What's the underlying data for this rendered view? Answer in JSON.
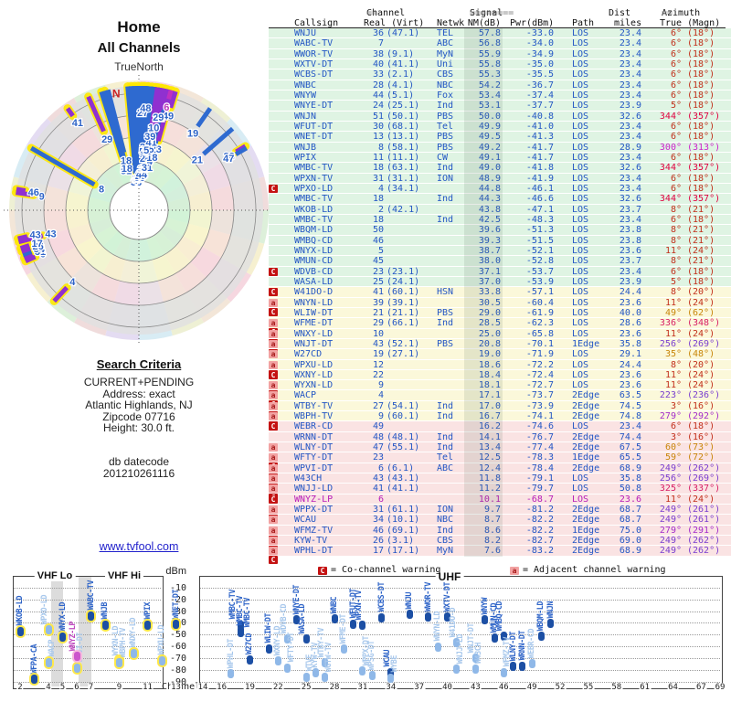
{
  "radar": {
    "title": "Home",
    "subtitle": "All Channels",
    "north_label": "TrueNorth",
    "north_marker": "N"
  },
  "search_criteria": {
    "heading": "Search Criteria",
    "lines": [
      "CURRENT+PENDING",
      "Address: exact",
      "Atlantic Highlands, NJ",
      "Zipcode 07716",
      "Height: 30.0 ft."
    ],
    "db_lines": [
      "db datecode",
      "201210261116"
    ]
  },
  "footer_link": "www.tvfool.com",
  "table": {
    "group_headers": {
      "channel": {
        "pre": "==",
        "label": "Channel",
        "post": "=="
      },
      "signal": {
        "pre": "========",
        "label": "Signal",
        "post": "========"
      },
      "dist": "Dist",
      "azimuth": {
        "pre": "==",
        "label": "Azimuth",
        "post": "=="
      }
    },
    "col_headers": {
      "callsign": "Callsign",
      "real_virt": "Real (Virt)",
      "netwk": "Netwk",
      "nm": "NM(dB)",
      "pwr": "Pwr(dBm)",
      "path": "Path",
      "miles": "miles",
      "true_magn": "True (Magn)"
    }
  },
  "colors": {
    "text_blue": "#2356c5",
    "row_green": "#dff4e3",
    "row_yellow": "#fbf8da",
    "row_pink": "#fae3e3",
    "co_badge": "#c41212",
    "adj_badge": "#f2a2a2",
    "analog_magenta": "#b81cb8",
    "az_red": "#c2301c",
    "az_crimson": "#e00040",
    "az_magenta": "#cc22cc",
    "az_pink": "#d81e64",
    "az_orange": "#c8860a",
    "az_purple": "#7a3fd0",
    "az_violet": "#a32ccc"
  },
  "stations": [
    {
      "callsign": "WNJU",
      "real": 36,
      "virt": "(47.1)",
      "netwk": "TEL",
      "nm": "57.8",
      "pwr": "-33.0",
      "path": "LOS",
      "miles": "23.4",
      "true": "6°",
      "magn": "(18°)",
      "az": 6,
      "flags": "",
      "tier": "g",
      "ac": "#c2301c"
    },
    {
      "callsign": "WABC-TV",
      "real": 7,
      "virt": "",
      "netwk": "ABC",
      "nm": "56.8",
      "pwr": "-34.0",
      "path": "LOS",
      "miles": "23.4",
      "true": "6°",
      "magn": "(18°)",
      "az": 6,
      "flags": "",
      "tier": "g",
      "ac": "#c2301c"
    },
    {
      "callsign": "WWOR-TV",
      "real": 38,
      "virt": "(9.1)",
      "netwk": "MyN",
      "nm": "55.9",
      "pwr": "-34.9",
      "path": "LOS",
      "miles": "23.4",
      "true": "6°",
      "magn": "(18°)",
      "az": 6,
      "flags": "",
      "tier": "g",
      "ac": "#c2301c"
    },
    {
      "callsign": "WXTV-DT",
      "real": 40,
      "virt": "(41.1)",
      "netwk": "Uni",
      "nm": "55.8",
      "pwr": "-35.0",
      "path": "LOS",
      "miles": "23.4",
      "true": "6°",
      "magn": "(18°)",
      "az": 6,
      "flags": "",
      "tier": "g",
      "ac": "#c2301c"
    },
    {
      "callsign": "WCBS-DT",
      "real": 33,
      "virt": "(2.1)",
      "netwk": "CBS",
      "nm": "55.3",
      "pwr": "-35.5",
      "path": "LOS",
      "miles": "23.4",
      "true": "6°",
      "magn": "(18°)",
      "az": 6,
      "flags": "",
      "tier": "g",
      "ac": "#c2301c"
    },
    {
      "callsign": "WNBC",
      "real": 28,
      "virt": "(4.1)",
      "netwk": "NBC",
      "nm": "54.2",
      "pwr": "-36.7",
      "path": "LOS",
      "miles": "23.4",
      "true": "6°",
      "magn": "(18°)",
      "az": 6,
      "flags": "",
      "tier": "g",
      "ac": "#c2301c"
    },
    {
      "callsign": "WNYW",
      "real": 44,
      "virt": "(5.1)",
      "netwk": "Fox",
      "nm": "53.4",
      "pwr": "-37.4",
      "path": "LOS",
      "miles": "23.4",
      "true": "6°",
      "magn": "(18°)",
      "az": 6,
      "flags": "",
      "tier": "g",
      "ac": "#c2301c"
    },
    {
      "callsign": "WNYE-DT",
      "real": 24,
      "virt": "(25.1)",
      "netwk": "Ind",
      "nm": "53.1",
      "pwr": "-37.7",
      "path": "LOS",
      "miles": "23.9",
      "true": "5°",
      "magn": "(18°)",
      "az": 5,
      "flags": "",
      "tier": "g",
      "ac": "#c2301c"
    },
    {
      "callsign": "WNJN",
      "real": 51,
      "virt": "(50.1)",
      "netwk": "PBS",
      "nm": "50.0",
      "pwr": "-40.8",
      "path": "LOS",
      "miles": "32.6",
      "true": "344°",
      "magn": "(357°)",
      "az": 344,
      "flags": "",
      "tier": "g",
      "ac": "#e00040"
    },
    {
      "callsign": "WFUT-DT",
      "real": 30,
      "virt": "(68.1)",
      "netwk": "Tel",
      "nm": "49.9",
      "pwr": "-41.0",
      "path": "LOS",
      "miles": "23.4",
      "true": "6°",
      "magn": "(18°)",
      "az": 6,
      "flags": "",
      "tier": "g",
      "ac": "#c2301c"
    },
    {
      "callsign": "WNET-DT",
      "real": 13,
      "virt": "(13.1)",
      "netwk": "PBS",
      "nm": "49.5",
      "pwr": "-41.3",
      "path": "LOS",
      "miles": "23.4",
      "true": "6°",
      "magn": "(18°)",
      "az": 6,
      "flags": "",
      "tier": "g",
      "ac": "#c2301c"
    },
    {
      "callsign": "WNJB",
      "real": 8,
      "virt": "(58.1)",
      "netwk": "PBS",
      "nm": "49.2",
      "pwr": "-41.7",
      "path": "LOS",
      "miles": "28.9",
      "true": "300°",
      "magn": "(313°)",
      "az": 300,
      "flags": "",
      "tier": "g",
      "ac": "#cc22cc"
    },
    {
      "callsign": "WPIX",
      "real": 11,
      "virt": "(11.1)",
      "netwk": "CW",
      "nm": "49.1",
      "pwr": "-41.7",
      "path": "LOS",
      "miles": "23.4",
      "true": "6°",
      "magn": "(18°)",
      "az": 6,
      "flags": "",
      "tier": "g",
      "ac": "#c2301c"
    },
    {
      "callsign": "WMBC-TV",
      "real": 18,
      "virt": "(63.1)",
      "netwk": "Ind",
      "nm": "49.0",
      "pwr": "-41.8",
      "path": "LOS",
      "miles": "32.6",
      "true": "344°",
      "magn": "(357°)",
      "az": 344,
      "flags": "",
      "tier": "g",
      "ac": "#e00040"
    },
    {
      "callsign": "WPXN-TV",
      "real": 31,
      "virt": "(31.1)",
      "netwk": "ION",
      "nm": "48.9",
      "pwr": "-41.9",
      "path": "LOS",
      "miles": "23.4",
      "true": "6°",
      "magn": "(18°)",
      "az": 6,
      "flags": "",
      "tier": "g",
      "ac": "#c2301c"
    },
    {
      "callsign": "WPXO-LD",
      "real": 4,
      "virt": "(34.1)",
      "netwk": "",
      "nm": "44.8",
      "pwr": "-46.1",
      "path": "LOS",
      "miles": "23.4",
      "true": "6°",
      "magn": "(18°)",
      "az": 6,
      "flags": "C",
      "tier": "g",
      "ac": "#c2301c"
    },
    {
      "callsign": "WMBC-TV",
      "real": 18,
      "virt": "",
      "netwk": "Ind",
      "nm": "44.3",
      "pwr": "-46.6",
      "path": "LOS",
      "miles": "32.6",
      "true": "344°",
      "magn": "(357°)",
      "az": 344,
      "flags": "",
      "tier": "g",
      "ac": "#e00040"
    },
    {
      "callsign": "WKOB-LD",
      "real": 2,
      "virt": "(42.1)",
      "netwk": "",
      "nm": "43.8",
      "pwr": "-47.1",
      "path": "LOS",
      "miles": "23.7",
      "true": "8°",
      "magn": "(21°)",
      "az": 8,
      "flags": "",
      "tier": "g",
      "ac": "#c2301c"
    },
    {
      "callsign": "WMBC-TV",
      "real": 18,
      "virt": "",
      "netwk": "Ind",
      "nm": "42.5",
      "pwr": "-48.3",
      "path": "LOS",
      "miles": "23.4",
      "true": "6°",
      "magn": "(18°)",
      "az": 6,
      "flags": "",
      "tier": "g",
      "ac": "#c2301c"
    },
    {
      "callsign": "WBQM-LD",
      "real": 50,
      "virt": "",
      "netwk": "",
      "nm": "39.6",
      "pwr": "-51.3",
      "path": "LOS",
      "miles": "23.8",
      "true": "8°",
      "magn": "(21°)",
      "az": 8,
      "flags": "",
      "tier": "g",
      "ac": "#c2301c"
    },
    {
      "callsign": "WMBQ-CD",
      "real": 46,
      "virt": "",
      "netwk": "",
      "nm": "39.3",
      "pwr": "-51.5",
      "path": "LOS",
      "miles": "23.8",
      "true": "8°",
      "magn": "(21°)",
      "az": 8,
      "flags": "",
      "tier": "g",
      "ac": "#c2301c"
    },
    {
      "callsign": "WNYX-LD",
      "real": 5,
      "virt": "",
      "netwk": "",
      "nm": "38.7",
      "pwr": "-52.1",
      "path": "LOS",
      "miles": "23.6",
      "true": "11°",
      "magn": "(24°)",
      "az": 11,
      "flags": "",
      "tier": "g",
      "ac": "#c2301c"
    },
    {
      "callsign": "WMUN-CD",
      "real": 45,
      "virt": "",
      "netwk": "",
      "nm": "38.0",
      "pwr": "-52.8",
      "path": "LOS",
      "miles": "23.7",
      "true": "8°",
      "magn": "(21°)",
      "az": 8,
      "flags": "",
      "tier": "g",
      "ac": "#c2301c"
    },
    {
      "callsign": "WDVB-CD",
      "real": 23,
      "virt": "(23.1)",
      "netwk": "",
      "nm": "37.1",
      "pwr": "-53.7",
      "path": "LOS",
      "miles": "23.4",
      "true": "6°",
      "magn": "(18°)",
      "az": 6,
      "flags": "C",
      "tier": "g",
      "ac": "#c2301c"
    },
    {
      "callsign": "WASA-LD",
      "real": 25,
      "virt": "(24.1)",
      "netwk": "",
      "nm": "37.0",
      "pwr": "-53.9",
      "path": "LOS",
      "miles": "23.9",
      "true": "5°",
      "magn": "(18°)",
      "az": 5,
      "flags": "",
      "tier": "g",
      "ac": "#c2301c"
    },
    {
      "callsign": "W41DO-D",
      "real": 41,
      "virt": "(60.1)",
      "netwk": "HSN",
      "nm": "33.8",
      "pwr": "-57.1",
      "path": "LOS",
      "miles": "24.4",
      "true": "8°",
      "magn": "(20°)",
      "az": 8,
      "flags": "C",
      "tier": "y",
      "ac": "#c2301c"
    },
    {
      "callsign": "WNYN-LD",
      "real": 39,
      "virt": "(39.1)",
      "netwk": "",
      "nm": "30.5",
      "pwr": "-60.4",
      "path": "LOS",
      "miles": "23.6",
      "true": "11°",
      "magn": "(24°)",
      "az": 11,
      "flags": "aC",
      "tier": "y",
      "ac": "#c2301c"
    },
    {
      "callsign": "WLIW-DT",
      "real": 21,
      "virt": "(21.1)",
      "netwk": "PBS",
      "nm": "29.0",
      "pwr": "-61.9",
      "path": "LOS",
      "miles": "40.0",
      "true": "49°",
      "magn": "(62°)",
      "az": 49,
      "flags": "",
      "tier": "y",
      "ac": "#c8860a"
    },
    {
      "callsign": "WFME-DT",
      "real": 29,
      "virt": "(66.1)",
      "netwk": "Ind",
      "nm": "28.5",
      "pwr": "-62.3",
      "path": "LOS",
      "miles": "28.6",
      "true": "336°",
      "magn": "(348°)",
      "az": 336,
      "flags": "aC",
      "tier": "y",
      "ac": "#d81e64"
    },
    {
      "callsign": "WNXY-LD",
      "real": 10,
      "virt": "",
      "netwk": "",
      "nm": "25.0",
      "pwr": "-65.8",
      "path": "LOS",
      "miles": "23.6",
      "true": "11°",
      "magn": "(24°)",
      "az": 11,
      "flags": "aC",
      "tier": "y",
      "ac": "#c2301c"
    },
    {
      "callsign": "WNJT-DT",
      "real": 43,
      "virt": "(52.1)",
      "netwk": "PBS",
      "nm": "20.8",
      "pwr": "-70.1",
      "path": "1Edge",
      "miles": "35.8",
      "true": "256°",
      "magn": "(269°)",
      "az": 256,
      "flags": "aC",
      "tier": "y",
      "ac": "#7a3fd0"
    },
    {
      "callsign": "W27CD",
      "real": 19,
      "virt": "(27.1)",
      "netwk": "",
      "nm": "19.0",
      "pwr": "-71.9",
      "path": "LOS",
      "miles": "29.1",
      "true": "35°",
      "magn": "(48°)",
      "az": 35,
      "flags": "a",
      "tier": "y",
      "ac": "#c8860a"
    },
    {
      "callsign": "WPXU-LD",
      "real": 12,
      "virt": "",
      "netwk": "",
      "nm": "18.6",
      "pwr": "-72.2",
      "path": "LOS",
      "miles": "24.4",
      "true": "8°",
      "magn": "(20°)",
      "az": 8,
      "flags": "aC",
      "tier": "y",
      "ac": "#c2301c"
    },
    {
      "callsign": "WXNY-LD",
      "real": 22,
      "virt": "",
      "netwk": "",
      "nm": "18.4",
      "pwr": "-72.4",
      "path": "LOS",
      "miles": "23.6",
      "true": "11°",
      "magn": "(24°)",
      "az": 11,
      "flags": "C",
      "tier": "y",
      "ac": "#c2301c"
    },
    {
      "callsign": "WYXN-LD",
      "real": 9,
      "virt": "",
      "netwk": "",
      "nm": "18.1",
      "pwr": "-72.7",
      "path": "LOS",
      "miles": "23.6",
      "true": "11°",
      "magn": "(24°)",
      "az": 11,
      "flags": "aC",
      "tier": "y",
      "ac": "#c2301c"
    },
    {
      "callsign": "WACP",
      "real": 4,
      "virt": "",
      "netwk": "",
      "nm": "17.1",
      "pwr": "-73.7",
      "path": "2Edge",
      "miles": "63.5",
      "true": "223°",
      "magn": "(236°)",
      "az": 223,
      "flags": "aC",
      "tier": "y",
      "ac": "#7a3fd0"
    },
    {
      "callsign": "WTBY-TV",
      "real": 27,
      "virt": "(54.1)",
      "netwk": "Ind",
      "nm": "17.0",
      "pwr": "-73.9",
      "path": "2Edge",
      "miles": "74.5",
      "true": "3°",
      "magn": "(16°)",
      "az": 3,
      "flags": "aC",
      "tier": "y",
      "ac": "#c2301c"
    },
    {
      "callsign": "WBPH-TV",
      "real": 9,
      "virt": "(60.1)",
      "netwk": "Ind",
      "nm": "16.7",
      "pwr": "-74.1",
      "path": "2Edge",
      "miles": "74.8",
      "true": "279°",
      "magn": "(292°)",
      "az": 279,
      "flags": "aC",
      "tier": "y",
      "ac": "#a32ccc"
    },
    {
      "callsign": "WEBR-CD",
      "real": 49,
      "virt": "",
      "netwk": "",
      "nm": "16.2",
      "pwr": "-74.6",
      "path": "LOS",
      "miles": "23.4",
      "true": "6°",
      "magn": "(18°)",
      "az": 6,
      "flags": "C",
      "tier": "p",
      "ac": "#c2301c"
    },
    {
      "callsign": "WRNN-DT",
      "real": 48,
      "virt": "(48.1)",
      "netwk": "Ind",
      "nm": "14.1",
      "pwr": "-76.7",
      "path": "2Edge",
      "miles": "74.4",
      "true": "3°",
      "magn": "(16°)",
      "az": 3,
      "flags": "",
      "tier": "p",
      "ac": "#c2301c"
    },
    {
      "callsign": "WLNY-DT",
      "real": 47,
      "virt": "(55.1)",
      "netwk": "Ind",
      "nm": "13.4",
      "pwr": "-77.4",
      "path": "2Edge",
      "miles": "67.5",
      "true": "60°",
      "magn": "(73°)",
      "az": 60,
      "flags": "a",
      "tier": "p",
      "ac": "#c8860a"
    },
    {
      "callsign": "WFTY-DT",
      "real": 23,
      "virt": "",
      "netwk": "Tel",
      "nm": "12.5",
      "pwr": "-78.3",
      "path": "1Edge",
      "miles": "65.5",
      "true": "59°",
      "magn": "(72°)",
      "az": 59,
      "flags": "aC",
      "tier": "p",
      "ac": "#c8860a"
    },
    {
      "callsign": "WPVI-DT",
      "real": 6,
      "virt": "(6.1)",
      "netwk": "ABC",
      "nm": "12.4",
      "pwr": "-78.4",
      "path": "2Edge",
      "miles": "68.9",
      "true": "249°",
      "magn": "(262°)",
      "az": 249,
      "flags": "aC",
      "tier": "p",
      "ac": "#7a3fd0"
    },
    {
      "callsign": "W43CH",
      "real": 43,
      "virt": "(43.1)",
      "netwk": "",
      "nm": "11.8",
      "pwr": "-79.1",
      "path": "LOS",
      "miles": "35.8",
      "true": "256°",
      "magn": "(269°)",
      "az": 256,
      "flags": "aC",
      "tier": "p",
      "ac": "#7a3fd0"
    },
    {
      "callsign": "WNJJ-LD",
      "real": 41,
      "virt": "(41.1)",
      "netwk": "",
      "nm": "11.2",
      "pwr": "-79.7",
      "path": "LOS",
      "miles": "50.8",
      "true": "325°",
      "magn": "(337°)",
      "az": 325,
      "flags": "aC",
      "tier": "p",
      "ac": "#d81e64"
    },
    {
      "callsign": "WNYZ-LP",
      "real": 6,
      "virt": "",
      "netwk": "",
      "nm": "10.1",
      "pwr": "-68.7",
      "path": "LOS",
      "miles": "23.6",
      "true": "11°",
      "magn": "(24°)",
      "az": 11,
      "flags": "C",
      "tier": "p",
      "ac": "#c2301c",
      "row_color": "#b81cb8"
    },
    {
      "callsign": "WPPX-DT",
      "real": 31,
      "virt": "(61.1)",
      "netwk": "ION",
      "nm": "9.7",
      "pwr": "-81.2",
      "path": "2Edge",
      "miles": "68.7",
      "true": "249°",
      "magn": "(261°)",
      "az": 249,
      "flags": "aC",
      "tier": "p",
      "ac": "#7a3fd0"
    },
    {
      "callsign": "WCAU",
      "real": 34,
      "virt": "(10.1)",
      "netwk": "NBC",
      "nm": "8.7",
      "pwr": "-82.2",
      "path": "2Edge",
      "miles": "68.7",
      "true": "249°",
      "magn": "(261°)",
      "az": 249,
      "flags": "a",
      "tier": "p",
      "ac": "#7a3fd0"
    },
    {
      "callsign": "WFMZ-TV",
      "real": 46,
      "virt": "(69.1)",
      "netwk": "Ind",
      "nm": "8.6",
      "pwr": "-82.2",
      "path": "1Edge",
      "miles": "75.0",
      "true": "279°",
      "magn": "(291°)",
      "az": 279,
      "flags": "aC",
      "tier": "p",
      "ac": "#a32ccc"
    },
    {
      "callsign": "KYW-TV",
      "real": 26,
      "virt": "(3.1)",
      "netwk": "CBS",
      "nm": "8.2",
      "pwr": "-82.7",
      "path": "2Edge",
      "miles": "69.0",
      "true": "249°",
      "magn": "(262°)",
      "az": 249,
      "flags": "aC",
      "tier": "p",
      "ac": "#7a3fd0"
    },
    {
      "callsign": "WPHL-DT",
      "real": 17,
      "virt": "(17.1)",
      "netwk": "MyN",
      "nm": "7.6",
      "pwr": "-83.2",
      "path": "2Edge",
      "miles": "68.9",
      "true": "249°",
      "magn": "(262°)",
      "az": 249,
      "flags": "aC",
      "tier": "p",
      "ac": "#7a3fd0"
    }
  ],
  "chart_extras": [
    {
      "callsign": "WFPA-CA",
      "real": 3,
      "pwr": -88.0,
      "style": "dark"
    },
    {
      "callsign": "WTVE",
      "real": 25,
      "pwr": -86.0,
      "style": "light"
    },
    {
      "callsign": "WGTW-TV",
      "real": 27,
      "pwr": -86.5,
      "style": "light"
    },
    {
      "callsign": "WPSG-DT",
      "real": 32,
      "pwr": -85.0,
      "style": "light"
    },
    {
      "callsign": "WYBE",
      "real": 34,
      "pwr": -87.0,
      "style": "light"
    }
  ],
  "legend": {
    "co_symbol": "C",
    "co_text": "= Co-channel warning",
    "adj_symbol": "a",
    "adj_text": "= Adjacent channel warning"
  },
  "charts": {
    "vhf_lo_label": "VHF Lo",
    "vhf_hi_label": "VHF Hi",
    "uhf_label": "UHF",
    "dbm_label": "dBm",
    "channel_label": "Channel",
    "dbm_ticks": [
      -10,
      -20,
      -30,
      -40,
      -50,
      -60,
      -70,
      -80,
      -90
    ],
    "vhf_ticks": [
      2,
      4,
      5,
      6,
      7,
      9,
      11,
      13
    ],
    "uhf_ticks": [
      14,
      16,
      19,
      22,
      25,
      28,
      31,
      34,
      37,
      40,
      43,
      46,
      49,
      52,
      55,
      58,
      61,
      64,
      67,
      69
    ]
  },
  "chart_data": [
    {
      "type": "radar",
      "title": "Home",
      "subtitle": "All Channels",
      "angle_field": "az (degrees true, 0=N clockwise)",
      "radius_field": "nm (dB, stronger toward center)",
      "series_ref": "stations",
      "north_marker_angle_deg": -11
    },
    {
      "type": "scatter",
      "title": "Signal power vs RF channel",
      "xlabel": "Channel",
      "ylabel": "dBm",
      "xlim": [
        2,
        69
      ],
      "ylim": [
        -95,
        0
      ],
      "bands": {
        "vhf_lo": [
          2,
          6
        ],
        "vhf_hi": [
          7,
          13
        ],
        "uhf": [
          14,
          69
        ]
      },
      "x_field": "real",
      "y_field": "pwr",
      "series_ref": "stations",
      "extra_points_ref": "chart_extras"
    }
  ]
}
